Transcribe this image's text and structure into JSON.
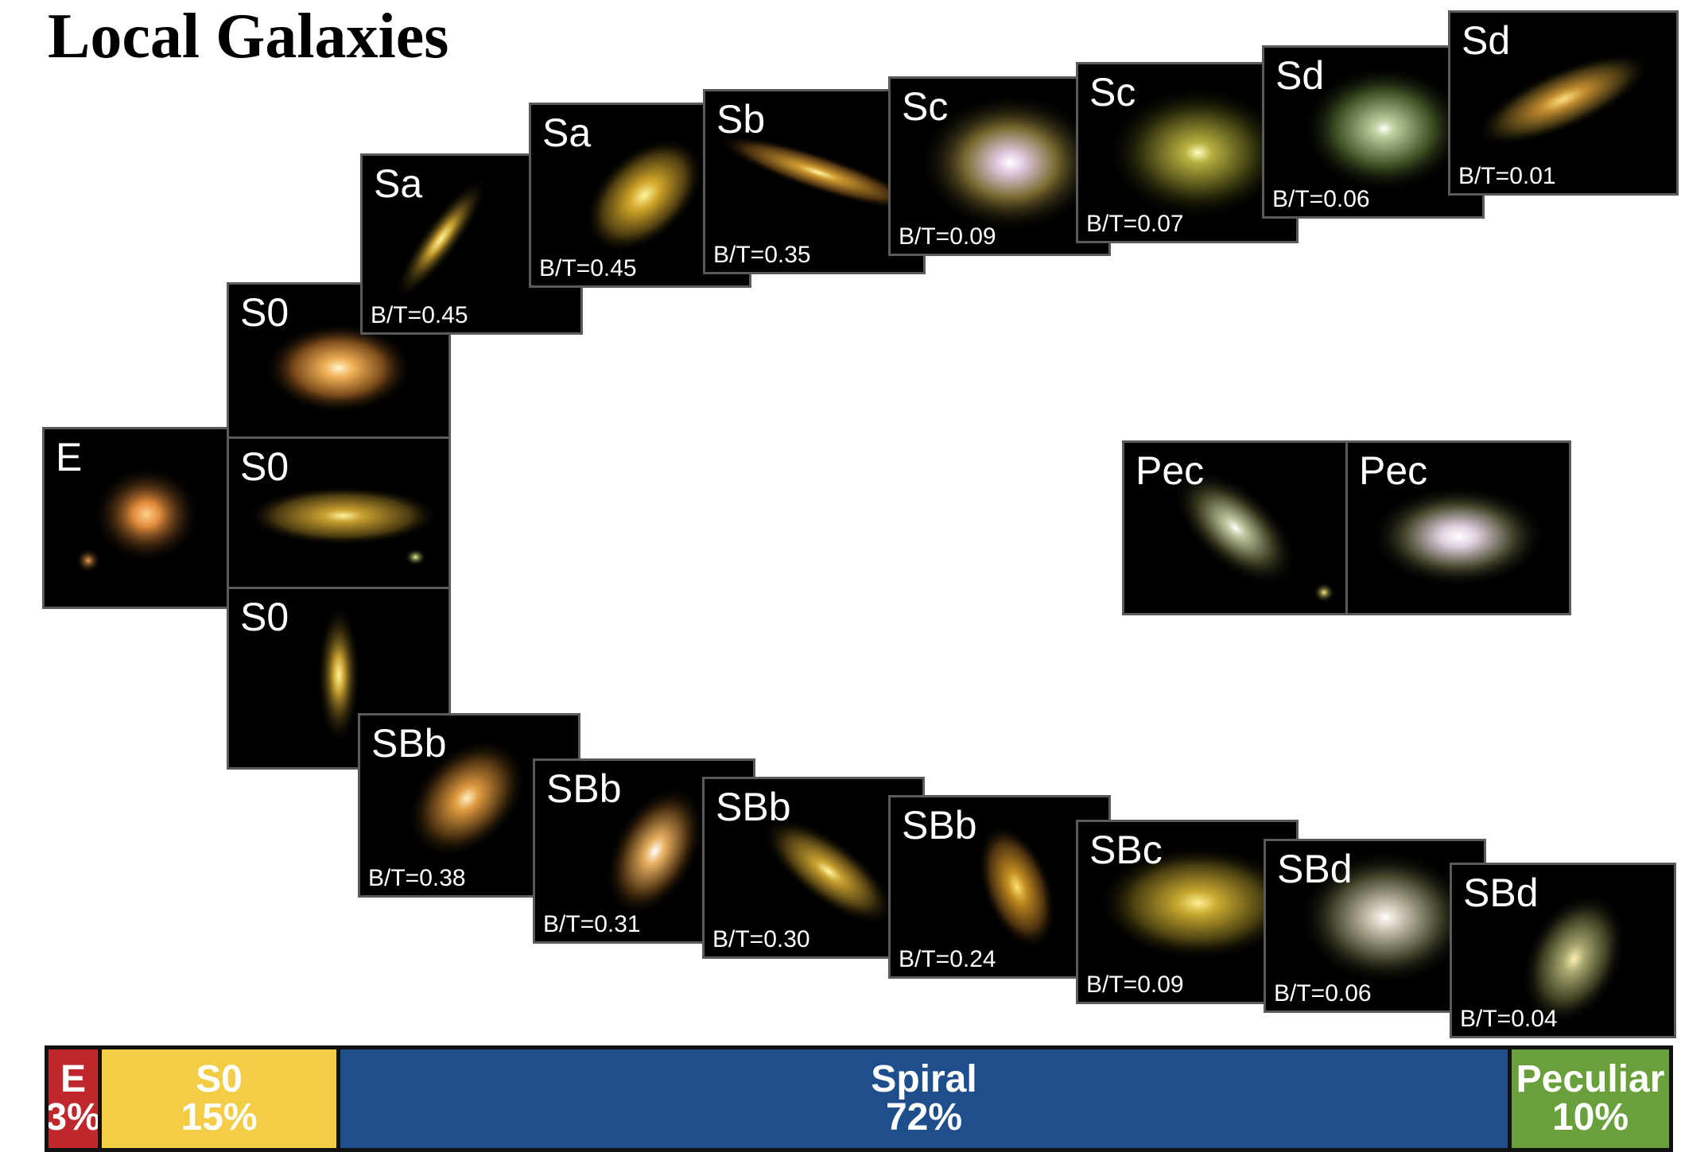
{
  "title": "Local Galaxies",
  "colors": {
    "E": "#c0272d",
    "S0": "#f2cd45",
    "Spiral": "#1f4e8c",
    "Peculiar": "#6aa03c"
  },
  "galaxies": {
    "E": {
      "type": "E",
      "bt": ""
    },
    "S0_1": {
      "type": "S0",
      "bt": ""
    },
    "S0_2": {
      "type": "S0",
      "bt": ""
    },
    "S0_3": {
      "type": "S0",
      "bt": ""
    },
    "Sa_1": {
      "type": "Sa",
      "bt": "B/T=0.45"
    },
    "Sa_2": {
      "type": "Sa",
      "bt": "B/T=0.45"
    },
    "Sb_1": {
      "type": "Sb",
      "bt": "B/T=0.35"
    },
    "Sc_1": {
      "type": "Sc",
      "bt": "B/T=0.09"
    },
    "Sc_2": {
      "type": "Sc",
      "bt": "B/T=0.07"
    },
    "Sd_1": {
      "type": "Sd",
      "bt": "B/T=0.06"
    },
    "Sd_2": {
      "type": "Sd",
      "bt": "B/T=0.01"
    },
    "SBb_1": {
      "type": "SBb",
      "bt": "B/T=0.38"
    },
    "SBb_2": {
      "type": "SBb",
      "bt": "B/T=0.31"
    },
    "SBb_3": {
      "type": "SBb",
      "bt": "B/T=0.30"
    },
    "SBb_4": {
      "type": "SBb",
      "bt": "B/T=0.24"
    },
    "SBc_1": {
      "type": "SBc",
      "bt": "B/T=0.09"
    },
    "SBd_1": {
      "type": "SBd",
      "bt": "B/T=0.06"
    },
    "SBd_2": {
      "type": "SBd",
      "bt": "B/T=0.04"
    },
    "Pec_1": {
      "type": "Pec",
      "bt": ""
    },
    "Pec_2": {
      "type": "Pec",
      "bt": ""
    }
  },
  "fractions": {
    "E": {
      "label": "E",
      "percent": "3%",
      "value": 3
    },
    "S0": {
      "label": "S0",
      "percent": "15%",
      "value": 15
    },
    "Spiral": {
      "label": "Spiral",
      "percent": "72%",
      "value": 72
    },
    "Peculiar": {
      "label": "Peculiar",
      "percent": "10%",
      "value": 10
    }
  }
}
